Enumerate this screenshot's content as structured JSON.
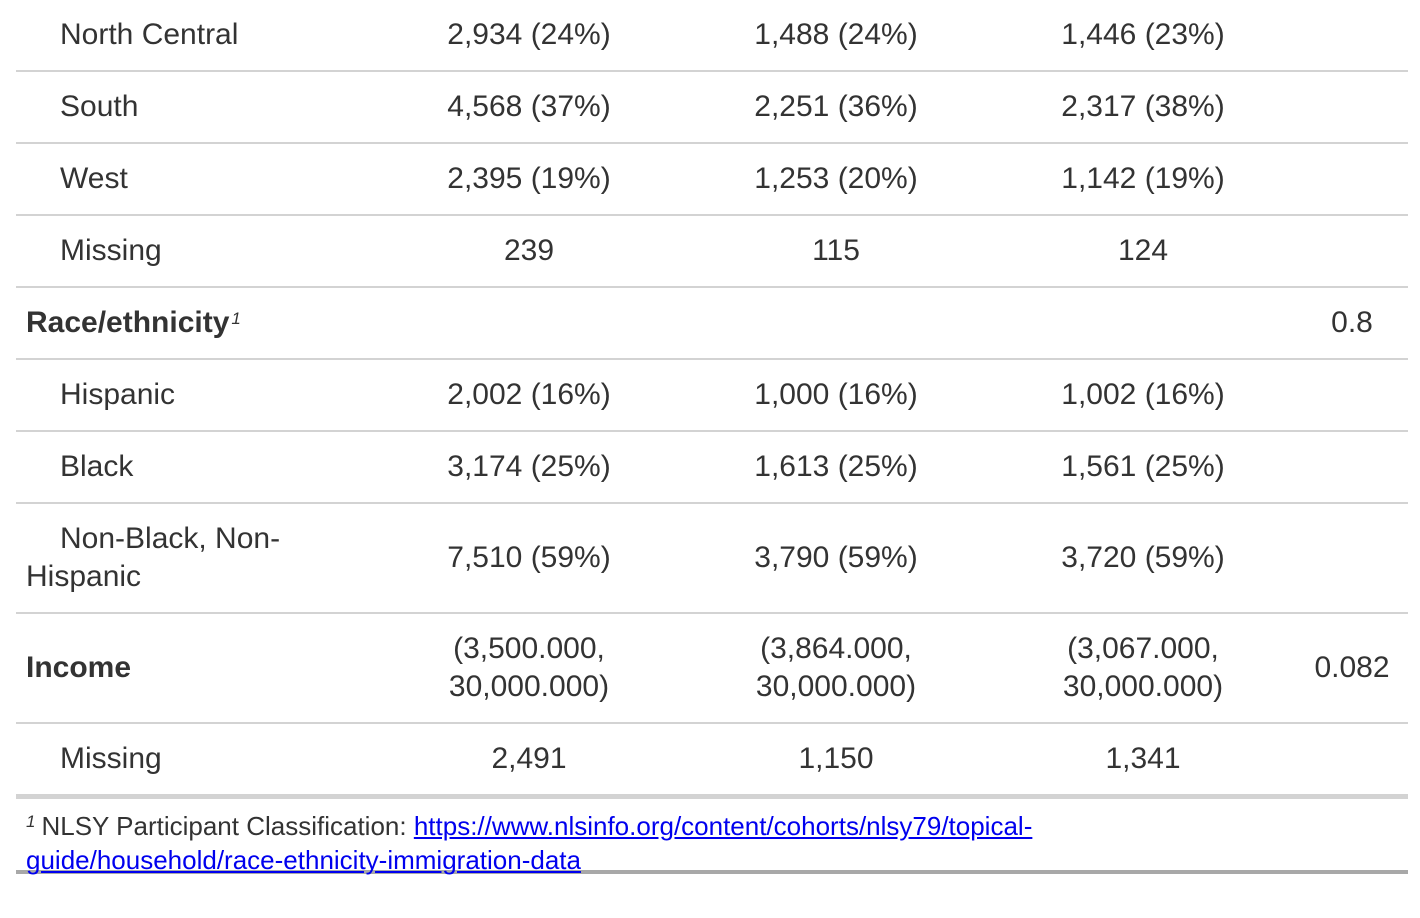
{
  "rows": [
    {
      "label": "North Central",
      "c1": "2,934 (24%)",
      "c2": "1,488 (24%)",
      "c3": "1,446 (23%)",
      "p": ""
    },
    {
      "label": "South",
      "c1": "4,568 (37%)",
      "c2": "2,251 (36%)",
      "c3": "2,317 (38%)",
      "p": ""
    },
    {
      "label": "West",
      "c1": "2,395 (19%)",
      "c2": "1,253 (20%)",
      "c3": "1,142 (19%)",
      "p": ""
    },
    {
      "label": "Missing",
      "c1": "239",
      "c2": "115",
      "c3": "124",
      "p": ""
    },
    {
      "label": "Race/ethnicity",
      "footnote_mark": "1",
      "c1": "",
      "c2": "",
      "c3": "",
      "p": "0.8"
    },
    {
      "label": "Hispanic",
      "c1": "2,002 (16%)",
      "c2": "1,000 (16%)",
      "c3": "1,002 (16%)",
      "p": ""
    },
    {
      "label": "Black",
      "c1": "3,174 (25%)",
      "c2": "1,613 (25%)",
      "c3": "1,561 (25%)",
      "p": ""
    },
    {
      "label_line1": "Non-Black, Non-",
      "label_line2": "Hispanic",
      "c1": "7,510 (59%)",
      "c2": "3,790 (59%)",
      "c3": "3,720 (59%)",
      "p": ""
    },
    {
      "label": "Income",
      "c1_line1": "(3,500.000,",
      "c1_line2": "30,000.000)",
      "c2_line1": "(3,864.000,",
      "c2_line2": "30,000.000)",
      "c3_line1": "(3,067.000,",
      "c3_line2": "30,000.000)",
      "p": "0.082"
    },
    {
      "label": "Missing",
      "c1": "2,491",
      "c2": "1,150",
      "c3": "1,341",
      "p": ""
    }
  ],
  "footnote": {
    "mark": "1",
    "text": "NLSY Participant Classification: ",
    "link_line1": "https://www.nlsinfo.org/content/cohorts/nlsy79/topical-",
    "link_line2": "guide/household/race-ethnicity-immigration-data"
  }
}
